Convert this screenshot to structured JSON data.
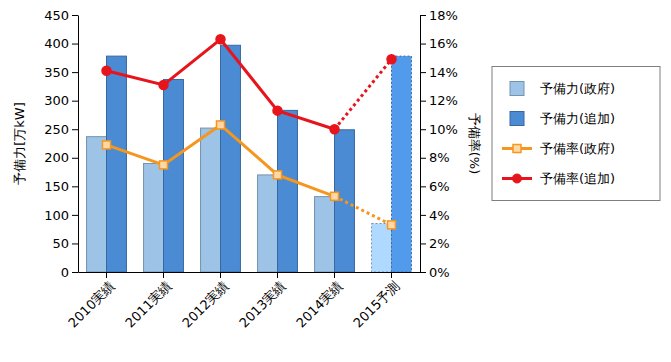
{
  "chart_data": {
    "type": "bar",
    "categories": [
      "2010実績",
      "2011実績",
      "2012実績",
      "2013実績",
      "2014実績",
      "2015予測"
    ],
    "y_label": "予備力[万kW]",
    "y2_label": "予備率(%)",
    "ylim": [
      0,
      450
    ],
    "yticks": [
      0,
      50,
      100,
      150,
      200,
      250,
      300,
      350,
      400,
      450
    ],
    "y2lim": [
      0,
      18
    ],
    "y2ticks": [
      {
        "value": 0,
        "label": "0%"
      },
      {
        "value": 2,
        "label": "2%"
      },
      {
        "value": 4,
        "label": "4%"
      },
      {
        "value": 6,
        "label": "6%"
      },
      {
        "value": 8,
        "label": "8%"
      },
      {
        "value": 10,
        "label": "10%"
      },
      {
        "value": 12,
        "label": "12%"
      },
      {
        "value": 14,
        "label": "14%"
      },
      {
        "value": 16,
        "label": "16%"
      },
      {
        "value": 18,
        "label": "18%"
      }
    ],
    "grid": false,
    "legend": "right",
    "series": [
      {
        "name": "予備力(政府)",
        "type": "bar",
        "color": "#9dc3e6",
        "values": [
          237,
          190,
          252,
          170,
          132,
          85
        ]
      },
      {
        "name": "予備力(追加)",
        "type": "bar",
        "color": "#4a8bd4",
        "values": [
          378,
          337,
          397,
          283,
          249,
          378
        ]
      },
      {
        "name": "予備率(政府)",
        "type": "line",
        "axis": "y2",
        "color": "#f5961e",
        "marker": "square",
        "line_style": "solid",
        "values": [
          8.9,
          7.5,
          10.3,
          6.8,
          5.3,
          3.3
        ]
      },
      {
        "name": "予備率(追加)",
        "type": "line",
        "axis": "y2",
        "color": "#e8141c",
        "marker": "circle",
        "line_style": "solid",
        "values": [
          14.1,
          13.1,
          16.3,
          11.3,
          10.0,
          14.9
        ]
      }
    ]
  }
}
